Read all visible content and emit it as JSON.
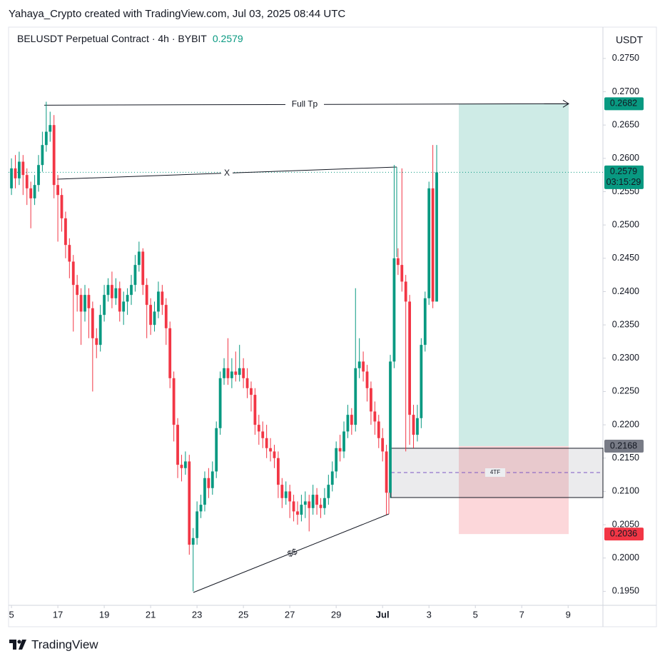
{
  "header": {
    "attribution": "Yahaya_Crypto created with TradingView.com, Jul 03, 2025 08:44 UTC"
  },
  "chart_data": {
    "type": "candlestick",
    "title": "BELUSDT Perpetual Contract · 4h · BYBIT",
    "last_price": 0.2579,
    "currency": "USDT",
    "countdown": "03:15:29",
    "up_color": "#089981",
    "down_color": "#f23645",
    "open": [
      0.2555,
      0.2585,
      0.257,
      0.2595,
      0.2575,
      0.2555,
      0.254,
      0.256,
      0.259,
      0.262,
      0.264,
      0.265,
      0.256,
      0.2545,
      0.251,
      0.247,
      0.2445,
      0.241,
      0.2395,
      0.237,
      0.2395,
      0.2375,
      0.233,
      0.232,
      0.2365,
      0.2395,
      0.241,
      0.239,
      0.2405,
      0.237,
      0.2385,
      0.2395,
      0.241,
      0.244,
      0.246,
      0.241,
      0.238,
      0.235,
      0.237,
      0.24,
      0.238,
      0.2345,
      0.227,
      0.22,
      0.214,
      0.2135,
      0.2145,
      0.202,
      0.203,
      0.207,
      0.208,
      0.212,
      0.2105,
      0.213,
      0.2195,
      0.227,
      0.2285,
      0.227,
      0.228,
      0.2275,
      0.2285,
      0.227,
      0.2255,
      0.2245,
      0.22,
      0.219,
      0.218,
      0.2165,
      0.216,
      0.215,
      0.211,
      0.209,
      0.21,
      0.2085,
      0.207,
      0.2065,
      0.208,
      0.2085,
      0.2075,
      0.2095,
      0.208,
      0.2075,
      0.209,
      0.211,
      0.213,
      0.2165,
      0.216,
      0.219,
      0.2215,
      0.22,
      0.2285,
      0.2295,
      0.228,
      0.2255,
      0.222,
      0.2205,
      0.218,
      0.216,
      0.2098,
      0.2295,
      0.245,
      0.244,
      0.2415,
      0.2385,
      0.2215,
      0.2185,
      0.221,
      0.232,
      0.239,
      0.2555,
      0.2385
    ],
    "high": [
      0.26,
      0.2605,
      0.261,
      0.2605,
      0.2585,
      0.2565,
      0.2575,
      0.2605,
      0.264,
      0.2685,
      0.267,
      0.2665,
      0.2575,
      0.2555,
      0.252,
      0.248,
      0.2455,
      0.2425,
      0.2405,
      0.241,
      0.2405,
      0.2385,
      0.2345,
      0.238,
      0.241,
      0.242,
      0.243,
      0.242,
      0.2415,
      0.24,
      0.2405,
      0.2425,
      0.2455,
      0.2475,
      0.2465,
      0.242,
      0.239,
      0.2385,
      0.2415,
      0.241,
      0.239,
      0.2355,
      0.228,
      0.221,
      0.2155,
      0.216,
      0.2155,
      0.2045,
      0.2085,
      0.2095,
      0.213,
      0.2135,
      0.2145,
      0.2205,
      0.228,
      0.23,
      0.233,
      0.23,
      0.231,
      0.232,
      0.23,
      0.2285,
      0.2265,
      0.2255,
      0.2215,
      0.2205,
      0.22,
      0.218,
      0.217,
      0.216,
      0.212,
      0.2115,
      0.211,
      0.2095,
      0.2085,
      0.2095,
      0.21,
      0.2095,
      0.211,
      0.2105,
      0.209,
      0.2105,
      0.2125,
      0.2145,
      0.2175,
      0.2185,
      0.2205,
      0.223,
      0.2225,
      0.2405,
      0.233,
      0.231,
      0.229,
      0.2265,
      0.2235,
      0.2215,
      0.2195,
      0.217,
      0.2305,
      0.259,
      0.2465,
      0.2585,
      0.2425,
      0.2395,
      0.223,
      0.223,
      0.233,
      0.24,
      0.2565,
      0.262,
      0.262
    ],
    "low": [
      0.2545,
      0.2555,
      0.256,
      0.2545,
      0.253,
      0.2495,
      0.253,
      0.255,
      0.258,
      0.261,
      0.2625,
      0.254,
      0.2475,
      0.249,
      0.245,
      0.242,
      0.234,
      0.237,
      0.232,
      0.2355,
      0.233,
      0.225,
      0.23,
      0.231,
      0.2355,
      0.2385,
      0.2375,
      0.238,
      0.2355,
      0.235,
      0.2365,
      0.238,
      0.24,
      0.243,
      0.2395,
      0.233,
      0.2335,
      0.234,
      0.236,
      0.2365,
      0.232,
      0.2255,
      0.2175,
      0.212,
      0.2115,
      0.2125,
      0.2005,
      0.195,
      0.202,
      0.206,
      0.207,
      0.209,
      0.2095,
      0.212,
      0.2185,
      0.226,
      0.226,
      0.2255,
      0.2265,
      0.2265,
      0.2255,
      0.224,
      0.222,
      0.2185,
      0.217,
      0.2165,
      0.215,
      0.2145,
      0.2135,
      0.209,
      0.2075,
      0.208,
      0.206,
      0.2055,
      0.205,
      0.2055,
      0.206,
      0.204,
      0.2065,
      0.2065,
      0.206,
      0.2065,
      0.208,
      0.21,
      0.212,
      0.2145,
      0.215,
      0.218,
      0.2185,
      0.219,
      0.227,
      0.2265,
      0.2235,
      0.22,
      0.2185,
      0.2165,
      0.2145,
      0.2065,
      0.209,
      0.2285,
      0.2425,
      0.24,
      0.216,
      0.217,
      0.2165,
      0.2175,
      0.2195,
      0.231,
      0.238,
      0.2375,
      0.2385
    ],
    "close": [
      0.2585,
      0.257,
      0.2595,
      0.2575,
      0.2555,
      0.254,
      0.256,
      0.259,
      0.262,
      0.264,
      0.265,
      0.256,
      0.2545,
      0.251,
      0.247,
      0.2445,
      0.241,
      0.2395,
      0.237,
      0.2395,
      0.2375,
      0.233,
      0.232,
      0.2365,
      0.2395,
      0.241,
      0.239,
      0.2405,
      0.237,
      0.2385,
      0.2395,
      0.241,
      0.244,
      0.246,
      0.241,
      0.238,
      0.235,
      0.237,
      0.24,
      0.238,
      0.2345,
      0.227,
      0.22,
      0.214,
      0.2135,
      0.2145,
      0.202,
      0.203,
      0.207,
      0.208,
      0.212,
      0.2105,
      0.213,
      0.2195,
      0.227,
      0.2285,
      0.227,
      0.228,
      0.2275,
      0.2285,
      0.227,
      0.2255,
      0.2245,
      0.22,
      0.219,
      0.218,
      0.2165,
      0.216,
      0.215,
      0.211,
      0.209,
      0.21,
      0.2085,
      0.207,
      0.2065,
      0.208,
      0.2085,
      0.2075,
      0.2095,
      0.208,
      0.2075,
      0.209,
      0.211,
      0.213,
      0.2165,
      0.216,
      0.219,
      0.2215,
      0.22,
      0.2285,
      0.2295,
      0.228,
      0.2255,
      0.222,
      0.2205,
      0.218,
      0.216,
      0.2098,
      0.2295,
      0.245,
      0.244,
      0.2415,
      0.2385,
      0.2215,
      0.2185,
      0.221,
      0.232,
      0.239,
      0.2555,
      0.2385,
      0.2579
    ],
    "xlim": [
      -0.75,
      153
    ],
    "xticks": [
      {
        "value": 0,
        "label": "5"
      },
      {
        "value": 12,
        "label": "17"
      },
      {
        "value": 24,
        "label": "19"
      },
      {
        "value": 36,
        "label": "21"
      },
      {
        "value": 48,
        "label": "23"
      },
      {
        "value": 60,
        "label": "25"
      },
      {
        "value": 72,
        "label": "27"
      },
      {
        "value": 84,
        "label": "29"
      },
      {
        "value": 96,
        "label": "Jul"
      },
      {
        "value": 108,
        "label": "3"
      },
      {
        "value": 120,
        "label": "5"
      },
      {
        "value": 132,
        "label": "7"
      },
      {
        "value": 144,
        "label": "9"
      }
    ],
    "ylim": [
      0.1929,
      0.2797
    ],
    "yticks": [
      {
        "value": 0.275,
        "label": "0.2750"
      },
      {
        "value": 0.27,
        "label": "0.2700"
      },
      {
        "value": 0.265,
        "label": "0.2650"
      },
      {
        "value": 0.26,
        "label": "0.2600"
      },
      {
        "value": 0.255,
        "label": "0.2550"
      },
      {
        "value": 0.25,
        "label": "0.2500"
      },
      {
        "value": 0.245,
        "label": "0.2450"
      },
      {
        "value": 0.24,
        "label": "0.2400"
      },
      {
        "value": 0.235,
        "label": "0.2350"
      },
      {
        "value": 0.23,
        "label": "0.2300"
      },
      {
        "value": 0.225,
        "label": "0.2250"
      },
      {
        "value": 0.22,
        "label": "0.2200"
      },
      {
        "value": 0.215,
        "label": "0.2150"
      },
      {
        "value": 0.21,
        "label": "0.2100"
      },
      {
        "value": 0.205,
        "label": "0.2050"
      },
      {
        "value": 0.2,
        "label": "0.2000"
      },
      {
        "value": 0.195,
        "label": "0.1950"
      }
    ],
    "annotations": {
      "target_label": "Full Tp",
      "target_price": 0.2682,
      "entry_price": 0.2168,
      "stop_price": 0.2036,
      "x_label": "X",
      "liquidity_label": "$$",
      "zone_label": "4TF"
    }
  },
  "footer": {
    "brand": "TradingView"
  }
}
